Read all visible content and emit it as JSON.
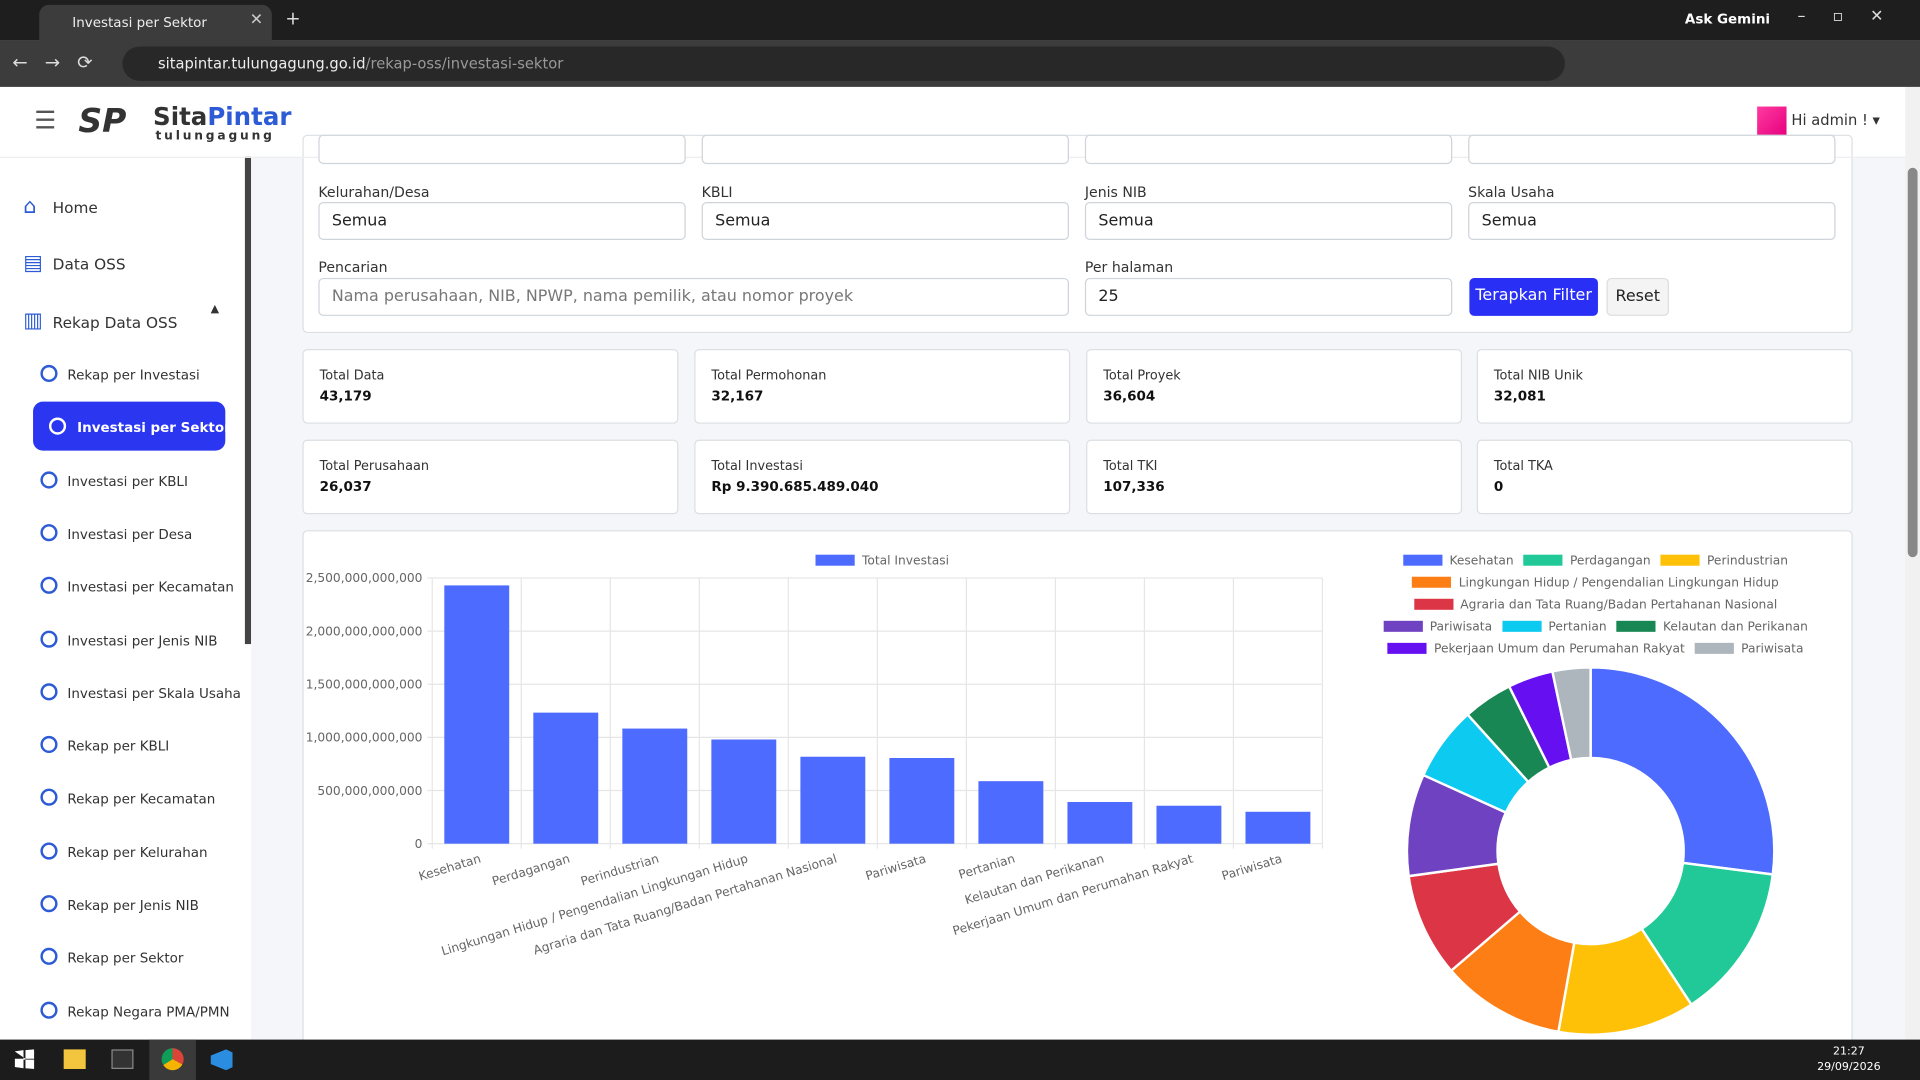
{
  "browser": {
    "tab_title": "Investasi per Sektor",
    "ask": "Ask Gemini",
    "url_host": "sitapintar.tulungagung.go.id",
    "url_path": "/rekap-oss/investasi-sektor"
  },
  "header": {
    "logo_a": "Sita",
    "logo_b": "Pintar",
    "logo_sub": "tulungagung",
    "user": "Hi admin !"
  },
  "sidebar": {
    "items": [
      "Home",
      "Data OSS",
      "Rekap Data OSS"
    ],
    "active_index": 1,
    "sub_items": [
      "Rekap per Investasi",
      "Investasi per Sektor",
      "Investasi per KBLI",
      "Investasi per Desa",
      "Investasi per Kecamatan",
      "Investasi per Jenis NIB",
      "Investasi per Skala Usaha",
      "Rekap per KBLI",
      "Rekap per Kecamatan",
      "Rekap per Kelurahan",
      "Rekap per Jenis NIB",
      "Rekap per Sektor",
      "Rekap Negara PMA/PMN"
    ]
  },
  "filters": {
    "fields": [
      {
        "label": "Kelurahan/Desa",
        "value": "Semua"
      },
      {
        "label": "KBLI",
        "value": "Semua"
      },
      {
        "label": "Jenis NIB",
        "value": "Semua"
      },
      {
        "label": "Skala Usaha",
        "value": "Semua"
      }
    ],
    "search_label": "Pencarian",
    "search_placeholder": "Nama perusahaan, NIB, NPWP, nama pemilik, atau nomor proyek",
    "per_page_label": "Per halaman",
    "per_page": "25",
    "apply": "Terapkan Filter",
    "reset": "Reset"
  },
  "stats": [
    {
      "label": "Total Data",
      "value": "43,179"
    },
    {
      "label": "Total Permohonan",
      "value": "32,167"
    },
    {
      "label": "Total Proyek",
      "value": "36,604"
    },
    {
      "label": "Total NIB Unik",
      "value": "32,081"
    },
    {
      "label": "Total Perusahaan",
      "value": "26,037"
    },
    {
      "label": "Total Investasi",
      "value": "Rp 9.390.685.489.040"
    },
    {
      "label": "Total TKI",
      "value": "107,336"
    },
    {
      "label": "Total TKA",
      "value": "0"
    }
  ],
  "taskbar": {
    "time": "21:27",
    "date": "29/09/2026"
  },
  "chart_data": [
    {
      "type": "bar",
      "categories": [
        "Kesehatan",
        "Perdagangan",
        "Perindustrian",
        "Lingkungan Hidup / Pengendalian Lingkungan Hidup",
        "Agraria dan Tata Ruang/Badan Pertahanan Nasional",
        "Pariwisata",
        "Pertanian",
        "Kelautan dan Perikanan",
        "Pekerjaan Umum dan Perumahan Rakyat",
        "Pariwisata"
      ],
      "series": [
        {
          "name": "Total Investasi",
          "color": "#4d6bfe",
          "values": [
            2430000000000,
            1233000000000,
            1083000000000,
            980000000000,
            818000000000,
            806000000000,
            588000000000,
            392000000000,
            357000000000,
            300000000000
          ]
        }
      ],
      "ylim": [
        0,
        2500000000000
      ],
      "yticks": [
        0,
        {
          "value": 500000000000,
          "label": "500,000,000,000"
        },
        {
          "value": 1000000000000,
          "label": "1,000,000,000,000"
        },
        {
          "value": 1500000000000,
          "label": "1,500,000,000,000"
        },
        {
          "value": 2000000000000,
          "label": "2,000,000,000,000"
        },
        {
          "value": 2500000000000,
          "label": "2,500,000,000,000"
        }
      ],
      "grid": true,
      "legend": "top"
    },
    {
      "type": "doughnut",
      "categories": [
        "Kesehatan",
        "Perdagangan",
        "Perindustrian",
        "Lingkungan Hidup / Pengendalian Lingkungan Hidup",
        "Agraria dan Tata Ruang/Badan Pertahanan Nasional",
        "Pariwisata",
        "Pertanian",
        "Kelautan dan Perikanan",
        "Pekerjaan Umum dan Perumahan Rakyat",
        "Pariwisata"
      ],
      "values": [
        2430000000000,
        1233000000000,
        1083000000000,
        980000000000,
        818000000000,
        806000000000,
        588000000000,
        392000000000,
        357000000000,
        300000000000
      ],
      "colors": [
        "#4d6bfe",
        "#20c997",
        "#ffc107",
        "#fd7e14",
        "#dc3545",
        "#6f42c1",
        "#0dcaf0",
        "#198754",
        "#6610f2",
        "#adb5bd"
      ],
      "legend": "top"
    }
  ]
}
